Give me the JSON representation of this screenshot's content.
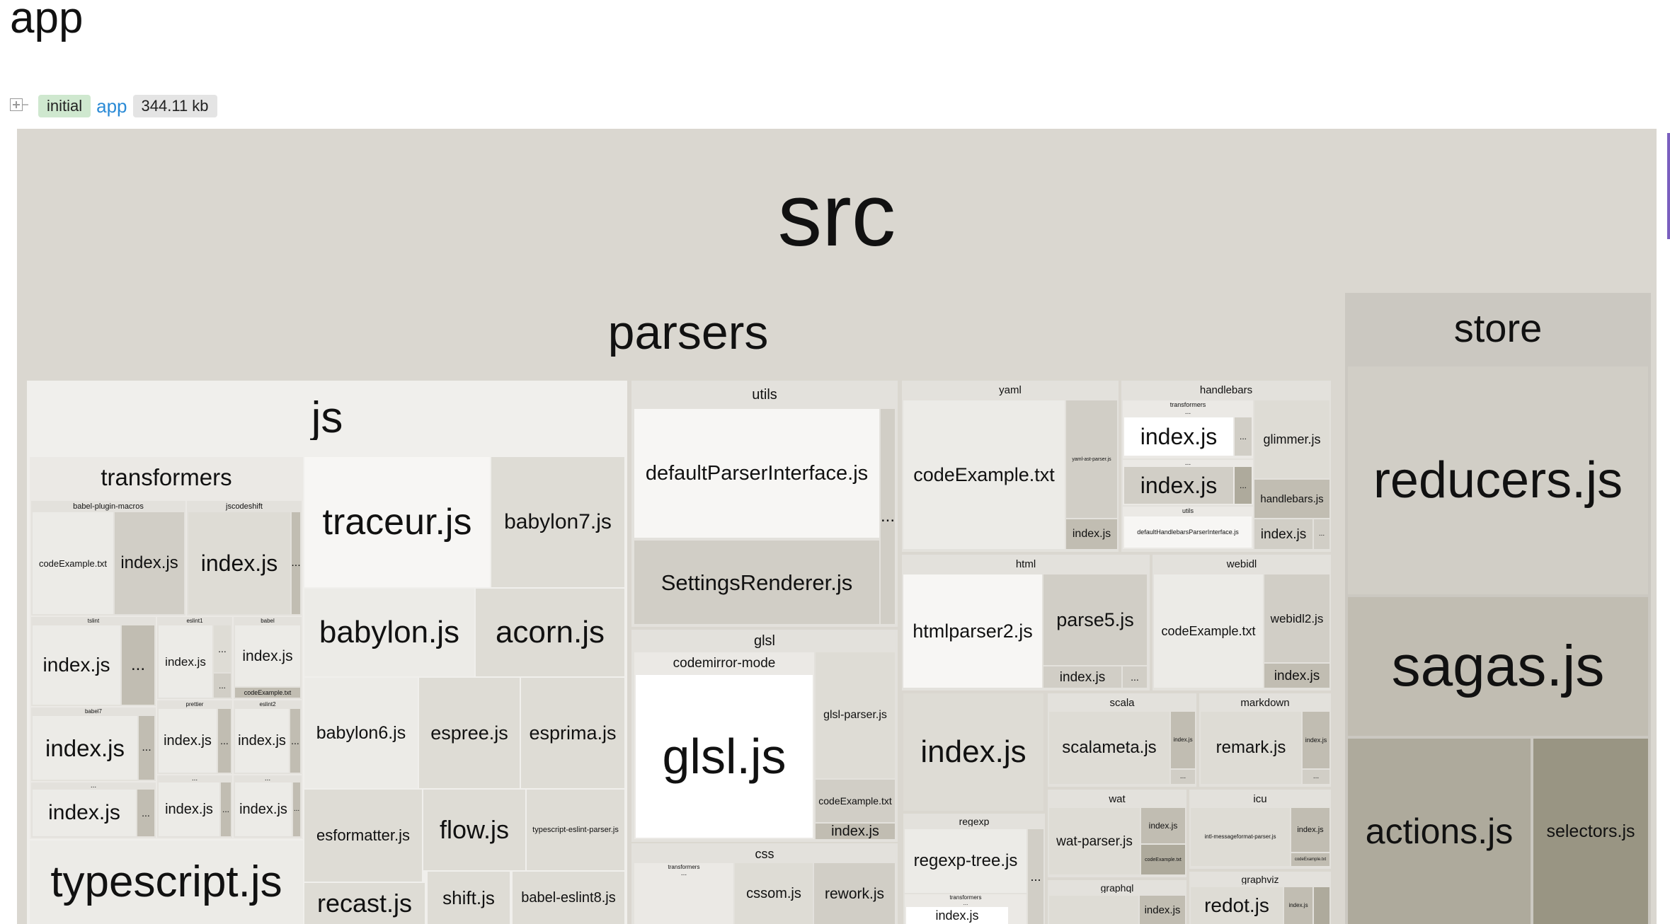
{
  "page": {
    "title": "app"
  },
  "meta": {
    "chunk_type": "initial",
    "chunk_name": "app",
    "size": "344.11 kb"
  },
  "treemap": {
    "root": "src",
    "parsers": "parsers",
    "store": "store",
    "store_files": [
      "reducers.js",
      "sagas.js",
      "actions.js",
      "selectors.js"
    ],
    "js": {
      "label": "js",
      "transformers": "transformers",
      "babel_plugin_macros": "babel-plugin-macros",
      "jscodeshift": "jscodeshift",
      "tslint": "tslint",
      "eslint1": "eslint1",
      "babel": "babel",
      "babel7": "babel7",
      "prettier": "prettier",
      "eslint2": "eslint2",
      "files": [
        "traceur.js",
        "babylon7.js",
        "babylon.js",
        "acorn.js",
        "babylon6.js",
        "espree.js",
        "esprima.js",
        "esformatter.js",
        "flow.js",
        "typescript-eslint-parser.js",
        "typescript.js",
        "babel-eslint8.js",
        "shift.js",
        "recast.js"
      ]
    },
    "utils": {
      "label": "utils",
      "files": [
        "defaultParserInterface.js",
        "SettingsRenderer.js"
      ]
    },
    "glsl": {
      "label": "glsl",
      "codemirror_mode": "codemirror-mode",
      "files": [
        "glsl.js",
        "glsl-parser.js",
        "codeExample.txt",
        "index.js"
      ]
    },
    "css": {
      "label": "css",
      "transformers": "transformers",
      "files": [
        "rework.js",
        "cssom.js"
      ]
    },
    "yaml": {
      "label": "yaml",
      "files": [
        "codeExample.txt",
        "yaml-ast-parser.js",
        "index.js"
      ]
    },
    "handlebars": {
      "label": "handlebars",
      "transformers": "transformers",
      "utils": "utils",
      "files": [
        "index.js",
        "index.js",
        "glimmer.js",
        "handlebars.js",
        "index.js",
        "defaultHandlebarsParserInterface.js"
      ]
    },
    "html": {
      "label": "html",
      "files": [
        "htmlparser2.js",
        "parse5.js",
        "index.js"
      ]
    },
    "webidl": {
      "label": "webidl",
      "files": [
        "codeExample.txt",
        "webidl2.js",
        "index.js"
      ]
    },
    "misc_index": "index.js",
    "scala": {
      "label": "scala",
      "files": [
        "scalameta.js",
        "index.js"
      ]
    },
    "markdown": {
      "label": "markdown",
      "files": [
        "remark.js",
        "index.js"
      ]
    },
    "regexp": {
      "label": "regexp",
      "transformers": "transformers",
      "files": [
        "regexp-tree.js",
        "index.js"
      ]
    },
    "wat": {
      "label": "wat",
      "files": [
        "wat-parser.js",
        "index.js",
        "codeExample.txt"
      ]
    },
    "icu": {
      "label": "icu",
      "files": [
        "intl-messageformat-parser.js",
        "index.js",
        "codeExample.txt"
      ]
    },
    "graphql": {
      "label": "graphql",
      "files": [
        "index.js"
      ]
    },
    "graphviz": {
      "label": "graphviz",
      "files": [
        "redot.js",
        "index.js"
      ]
    },
    "common": {
      "index": "index.js",
      "code_example": "codeExample.txt",
      "ellipsis": "..."
    }
  }
}
